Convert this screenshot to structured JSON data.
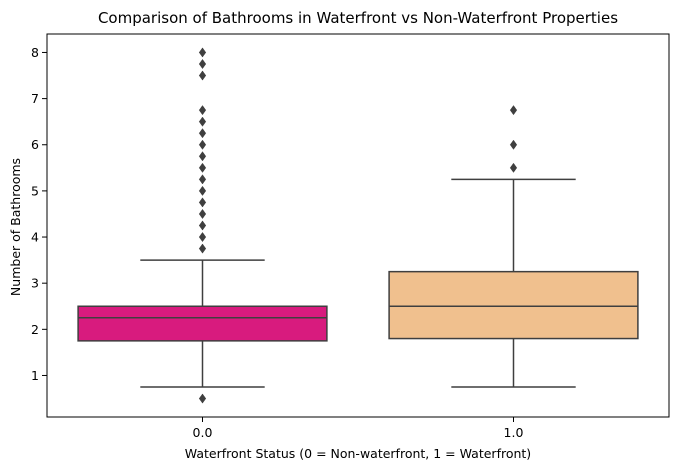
{
  "chart_data": {
    "type": "box",
    "title": "Comparison of Bathrooms in Waterfront vs Non-Waterfront Properties",
    "xlabel": "Waterfront Status (0 = Non-waterfront, 1 = Waterfront)",
    "ylabel": "Number of Bathrooms",
    "categories": [
      "0.0",
      "1.0"
    ],
    "yticks": [
      "1",
      "2",
      "3",
      "4",
      "5",
      "6",
      "7",
      "8"
    ],
    "ylim": [
      0.1,
      8.4
    ],
    "grid": false,
    "legend": "none",
    "boxes": [
      {
        "category": "0.0",
        "color": "#d81b7e",
        "whisker_low": 0.75,
        "q1": 1.75,
        "median": 2.25,
        "q3": 2.5,
        "whisker_high": 3.5,
        "outliers": [
          0.5,
          3.75,
          4.0,
          4.25,
          4.5,
          4.75,
          5.0,
          5.25,
          5.5,
          5.75,
          6.0,
          6.25,
          6.5,
          6.75,
          7.5,
          7.75,
          8.0
        ]
      },
      {
        "category": "1.0",
        "color": "#f0c08e",
        "whisker_low": 0.75,
        "q1": 1.8,
        "median": 2.5,
        "q3": 3.25,
        "whisker_high": 5.25,
        "outliers": [
          5.5,
          6.0,
          6.75
        ]
      }
    ]
  }
}
